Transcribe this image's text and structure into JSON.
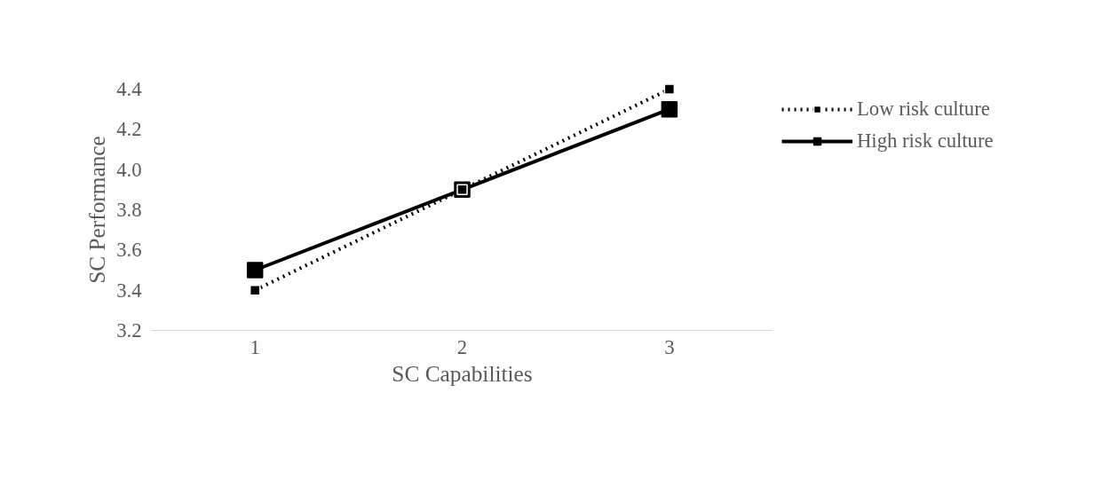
{
  "chart_data": {
    "type": "line",
    "xlabel": "SC Capabilities",
    "ylabel": "SC Performance",
    "categories": [
      "1",
      "2",
      "3"
    ],
    "series": [
      {
        "name": "Low risk culture",
        "color": "#000000",
        "values": [
          3.4,
          3.9,
          4.4
        ],
        "line_style": "dotted",
        "marker": "square"
      },
      {
        "name": "High risk culture",
        "color": "#000000",
        "values": [
          3.5,
          3.9,
          4.3
        ],
        "line_style": "solid",
        "marker": "square"
      }
    ],
    "ylim": [
      3.2,
      4.4
    ],
    "yticks": [
      {
        "value": 3.2,
        "label": "3.2"
      },
      {
        "value": 3.4,
        "label": "3.4"
      },
      {
        "value": 3.6,
        "label": "3.6"
      },
      {
        "value": 3.8,
        "label": "3.8"
      },
      {
        "value": 4.0,
        "label": "4.0"
      },
      {
        "value": 4.2,
        "label": "4.2"
      },
      {
        "value": 4.4,
        "label": "4.4"
      }
    ],
    "grid": false,
    "legend": "top right"
  }
}
